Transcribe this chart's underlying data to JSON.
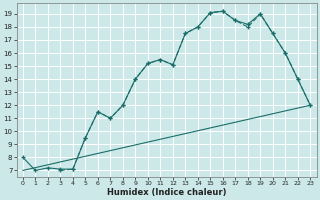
{
  "bg_color": "#cce8e8",
  "grid_color": "#ffffff",
  "line_color": "#1a6e6a",
  "xlabel": "Humidex (Indice chaleur)",
  "ylim": [
    6.5,
    19.8
  ],
  "xlim": [
    -0.5,
    23.5
  ],
  "yticks": [
    7,
    8,
    9,
    10,
    11,
    12,
    13,
    14,
    15,
    16,
    17,
    18,
    19
  ],
  "xticks": [
    0,
    1,
    2,
    3,
    4,
    5,
    6,
    7,
    8,
    9,
    10,
    11,
    12,
    13,
    14,
    15,
    16,
    17,
    18,
    19,
    20,
    21,
    22,
    23
  ],
  "line1_x": [
    0,
    23
  ],
  "line1_y": [
    7.0,
    12.0
  ],
  "line2_x": [
    0,
    1,
    2,
    3,
    4,
    5,
    6,
    7,
    8,
    9,
    10,
    11,
    12,
    13,
    14,
    15,
    16,
    17,
    18,
    19,
    20,
    21,
    22,
    23
  ],
  "line2_y": [
    8.0,
    7.0,
    7.2,
    7.1,
    7.1,
    9.5,
    11.5,
    11.0,
    12.0,
    14.0,
    15.2,
    15.5,
    15.1,
    17.5,
    18.0,
    19.1,
    19.2,
    18.5,
    18.2,
    19.0,
    17.5,
    16.0,
    14.0,
    12.0
  ],
  "line3_x": [
    3,
    4,
    5,
    6,
    7,
    8,
    9,
    10,
    11,
    12,
    13,
    14,
    15,
    16,
    17,
    18,
    19,
    20,
    21,
    22,
    23
  ],
  "line3_y": [
    7.0,
    7.1,
    9.5,
    11.5,
    11.0,
    12.0,
    14.0,
    15.2,
    15.5,
    15.1,
    17.5,
    18.0,
    19.1,
    19.2,
    18.5,
    18.0,
    19.0,
    17.5,
    16.0,
    14.0,
    12.0
  ],
  "tick_fontsize": 5,
  "xlabel_fontsize": 6
}
